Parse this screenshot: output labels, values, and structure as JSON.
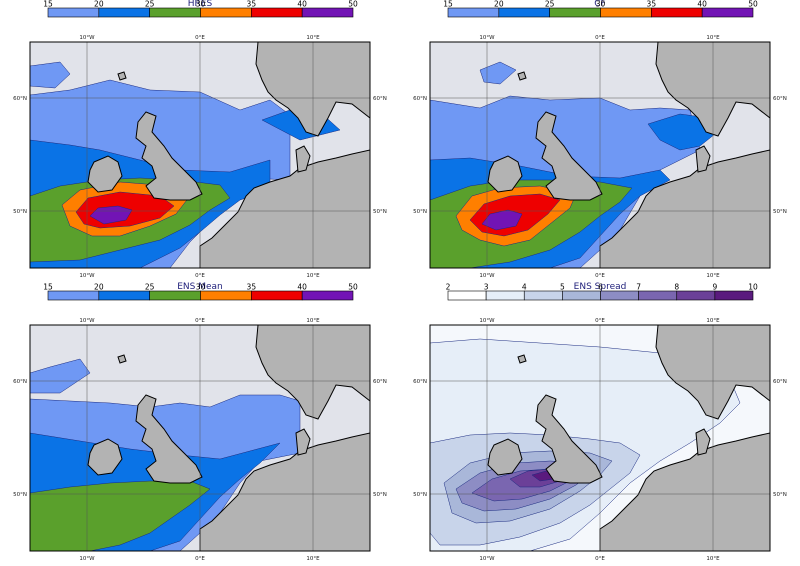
{
  "panels": [
    {
      "id": "hres",
      "title": "HRES",
      "colorbar": {
        "ticks": [
          "15",
          "20",
          "25",
          "30",
          "35",
          "40",
          "50"
        ],
        "colors": [
          "#6f98f4",
          "#0a73e6",
          "#5aa02c",
          "#ff7f00",
          "#ee0000",
          "#7214b5"
        ]
      }
    },
    {
      "id": "cf",
      "title": "CF",
      "colorbar": {
        "ticks": [
          "15",
          "20",
          "25",
          "30",
          "35",
          "40",
          "50"
        ],
        "colors": [
          "#6f98f4",
          "#0a73e6",
          "#5aa02c",
          "#ff7f00",
          "#ee0000",
          "#7214b5"
        ]
      }
    },
    {
      "id": "ens-mean",
      "title": "ENS Mean",
      "colorbar": {
        "ticks": [
          "15",
          "20",
          "25",
          "30",
          "35",
          "40",
          "50"
        ],
        "colors": [
          "#6f98f4",
          "#0a73e6",
          "#5aa02c",
          "#ff7f00",
          "#ee0000",
          "#7214b5"
        ]
      }
    },
    {
      "id": "ens-spread",
      "title": "ENS Spread",
      "colorbar": {
        "ticks": [
          "2",
          "3",
          "4",
          "5",
          "6",
          "7",
          "8",
          "9",
          "10"
        ],
        "colors": [
          "#ffffff",
          "#e6eef8",
          "#c8d4ea",
          "#a9b7d9",
          "#8d8dc4",
          "#7a66b0",
          "#6b4098",
          "#5a1a7e"
        ]
      }
    }
  ],
  "axes": {
    "lon_labels": [
      "10°W",
      "0°E",
      "10°E"
    ],
    "lat_labels": [
      "60°N",
      "50°N"
    ]
  },
  "colors": {
    "land": "#b3b3b3",
    "sea_background": "#e1e3ea",
    "spread_background": "#f5f8fc",
    "title": "#1f1f7a"
  }
}
